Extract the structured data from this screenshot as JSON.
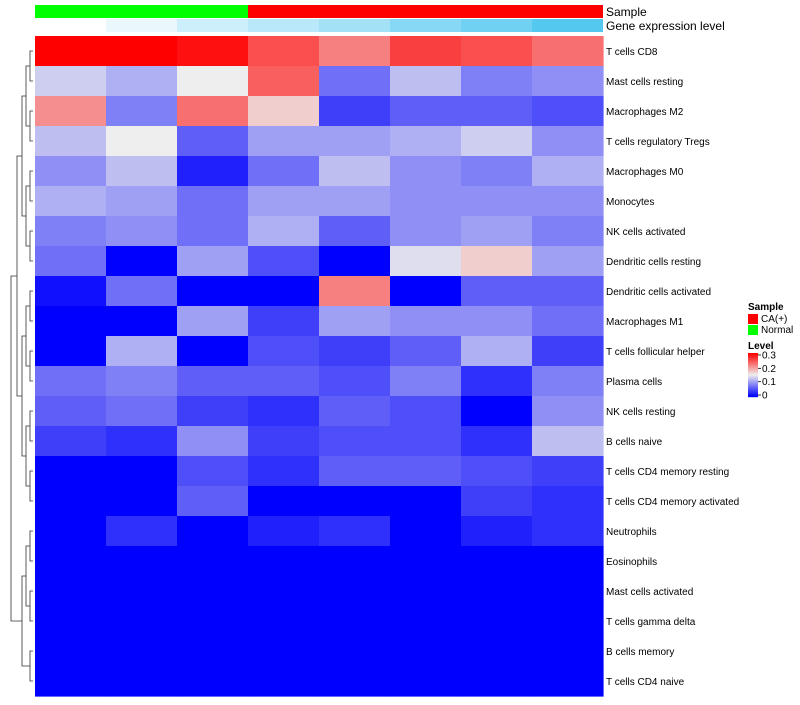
{
  "chart_data": {
    "type": "heatmap",
    "title": "",
    "annotation_tracks": [
      {
        "name": "Sample",
        "values": [
          "Normal",
          "Normal",
          "Normal",
          "CA(+)",
          "CA(+)",
          "CA(+)",
          "CA(+)",
          "CA(+)"
        ]
      },
      {
        "name": "Gene expression level",
        "values": [
          0.0,
          0.03,
          0.07,
          0.1,
          0.13,
          0.17,
          0.2,
          0.24
        ]
      }
    ],
    "rows": [
      "T cells CD8",
      "Mast cells resting",
      "Macrophages M2",
      "T cells regulatory  Tregs",
      "Macrophages M0",
      "Monocytes",
      "NK cells activated",
      "Dendritic cells resting",
      "Dendritic cells activated",
      "Macrophages M1",
      "T cells follicular helper",
      "Plasma cells",
      "NK cells resting",
      "B cells naive",
      "T cells CD4 memory resting",
      "T cells CD4 memory activated",
      "Neutrophils",
      "Eosinophils",
      "Mast cells activated",
      "T cells gamma delta",
      "B cells memory",
      "T cells CD4 naive"
    ],
    "values": [
      [
        0.3,
        0.3,
        0.29,
        0.25,
        0.22,
        0.26,
        0.25,
        0.23
      ],
      [
        0.13,
        0.11,
        0.15,
        0.24,
        0.07,
        0.12,
        0.08,
        0.09
      ],
      [
        0.21,
        0.08,
        0.23,
        0.17,
        0.04,
        0.06,
        0.06,
        0.05
      ],
      [
        0.12,
        0.15,
        0.06,
        0.1,
        0.1,
        0.11,
        0.13,
        0.09
      ],
      [
        0.09,
        0.12,
        0.02,
        0.07,
        0.12,
        0.09,
        0.08,
        0.11
      ],
      [
        0.11,
        0.1,
        0.07,
        0.1,
        0.1,
        0.09,
        0.09,
        0.09
      ],
      [
        0.08,
        0.09,
        0.07,
        0.11,
        0.06,
        0.09,
        0.1,
        0.08
      ],
      [
        0.07,
        0.0,
        0.1,
        0.05,
        0.0,
        0.14,
        0.17,
        0.1
      ],
      [
        0.01,
        0.07,
        0.0,
        0.0,
        0.22,
        0.0,
        0.06,
        0.06
      ],
      [
        0.0,
        0.0,
        0.1,
        0.04,
        0.1,
        0.09,
        0.09,
        0.07
      ],
      [
        0.0,
        0.11,
        0.0,
        0.05,
        0.04,
        0.06,
        0.11,
        0.04
      ],
      [
        0.07,
        0.08,
        0.06,
        0.06,
        0.05,
        0.08,
        0.03,
        0.08
      ],
      [
        0.06,
        0.07,
        0.04,
        0.03,
        0.06,
        0.05,
        0.0,
        0.09
      ],
      [
        0.04,
        0.03,
        0.09,
        0.04,
        0.05,
        0.05,
        0.03,
        0.12
      ],
      [
        0.0,
        0.0,
        0.05,
        0.03,
        0.06,
        0.06,
        0.05,
        0.04
      ],
      [
        0.0,
        0.0,
        0.06,
        0.0,
        0.0,
        0.0,
        0.04,
        0.03
      ],
      [
        0.0,
        0.03,
        0.0,
        0.02,
        0.03,
        0.0,
        0.02,
        0.03
      ],
      [
        0.0,
        0.0,
        0.0,
        0.0,
        0.0,
        0.0,
        0.0,
        0.0
      ],
      [
        0.0,
        0.0,
        0.0,
        0.0,
        0.0,
        0.0,
        0.0,
        0.0
      ],
      [
        0.0,
        0.0,
        0.0,
        0.0,
        0.0,
        0.0,
        0.0,
        0.0
      ],
      [
        0.0,
        0.0,
        0.0,
        0.0,
        0.0,
        0.0,
        0.0,
        0.0
      ],
      [
        0.0,
        0.0,
        0.0,
        0.0,
        0.0,
        0.0,
        0.0,
        0.0
      ]
    ],
    "color_scale": {
      "min": 0,
      "mid": 0.15,
      "max": 0.3,
      "low": "#0000ff",
      "mid_color": "#eeeeee",
      "high": "#ff0000"
    },
    "legends": [
      {
        "title": "Sample",
        "entries": [
          {
            "label": "CA(+)",
            "color": "#ff0000"
          },
          {
            "label": "Normal",
            "color": "#00ff00"
          }
        ]
      },
      {
        "title": "Level",
        "ticks": [
          "0.3",
          "0.2",
          "0.1",
          "0"
        ]
      }
    ],
    "legend_position": "right",
    "row_dendrogram": true,
    "grid": false
  }
}
